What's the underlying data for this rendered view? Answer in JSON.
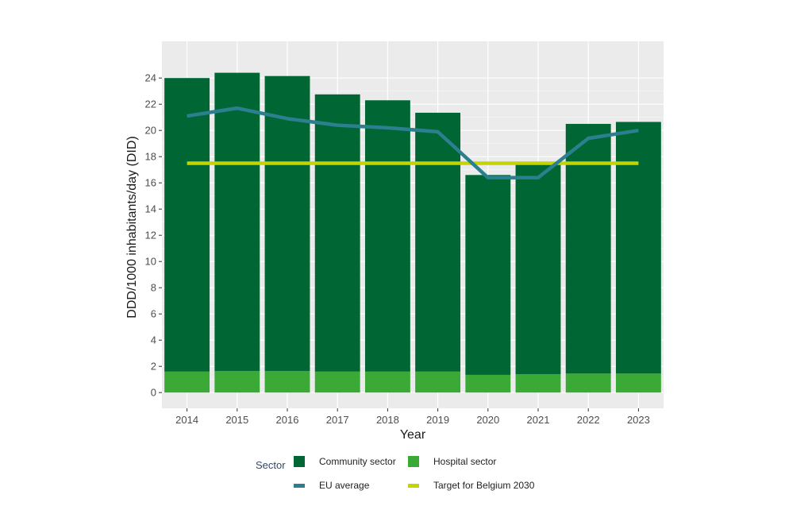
{
  "chart_data": {
    "type": "bar",
    "stacked": true,
    "categories": [
      "2014",
      "2015",
      "2016",
      "2017",
      "2018",
      "2019",
      "2020",
      "2021",
      "2022",
      "2023"
    ],
    "series": [
      {
        "name": "Hospital sector",
        "color": "#3aa935",
        "values": [
          1.6,
          1.65,
          1.65,
          1.6,
          1.6,
          1.6,
          1.35,
          1.4,
          1.45,
          1.45
        ]
      },
      {
        "name": "Community sector",
        "color": "#006633",
        "values": [
          22.4,
          22.75,
          22.5,
          21.15,
          20.7,
          19.75,
          15.25,
          16.0,
          19.05,
          19.2
        ]
      }
    ],
    "lines": [
      {
        "name": "EU average",
        "color": "#2b7f8f",
        "values": [
          21.1,
          21.7,
          20.9,
          20.4,
          20.2,
          19.9,
          16.4,
          16.4,
          19.4,
          20.0
        ]
      },
      {
        "name": "Target for Belgium 2030",
        "color": "#c3d400",
        "values": [
          17.5,
          17.5,
          17.5,
          17.5,
          17.5,
          17.5,
          17.5,
          17.5,
          17.5,
          17.5
        ]
      }
    ],
    "xlabel": "Year",
    "ylabel": "DDD/1000 inhabitants/day (DID)",
    "ylim": [
      -1.2,
      26.8
    ],
    "yticks": [
      0,
      2,
      4,
      6,
      8,
      10,
      12,
      14,
      16,
      18,
      20,
      22,
      24
    ],
    "grid": true,
    "legend_position": "bottom"
  },
  "legend": {
    "title": "Sector",
    "items": [
      {
        "label": "Community sector",
        "color": "#006633",
        "kind": "box"
      },
      {
        "label": "Hospital sector",
        "color": "#3aa935",
        "kind": "box"
      },
      {
        "label": "EU average",
        "color": "#2b7f8f",
        "kind": "line"
      },
      {
        "label": "Target for Belgium 2030",
        "color": "#c3d400",
        "kind": "line"
      }
    ]
  }
}
